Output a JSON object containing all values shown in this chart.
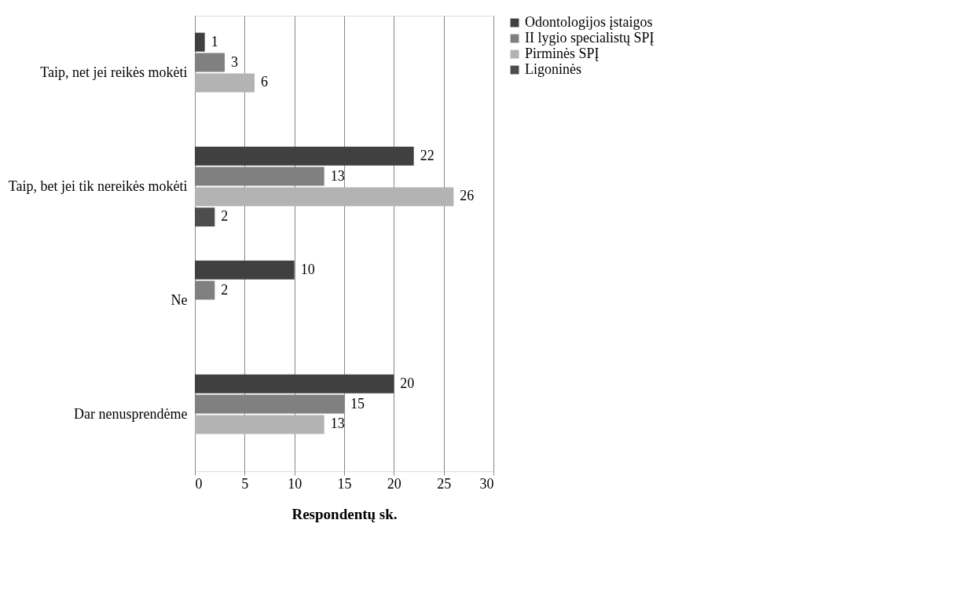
{
  "chart_data": {
    "type": "bar",
    "orientation": "horizontal",
    "xlabel": "Respondentų sk.",
    "categories": [
      "Taip, net jei reikės mokėti",
      "Taip, bet jei tik nereikės mokėti",
      "Ne",
      "Dar nenusprendėme"
    ],
    "series": [
      {
        "name": "Odontologijos įstaigos",
        "color": "#404040",
        "values": [
          1,
          22,
          10,
          20
        ]
      },
      {
        "name": "II lygio specialistų SPĮ",
        "color": "#808080",
        "values": [
          3,
          13,
          2,
          15
        ]
      },
      {
        "name": "Pirminės SPĮ",
        "color": "#b3b3b3",
        "values": [
          6,
          26,
          null,
          13
        ]
      },
      {
        "name": "Ligoninės",
        "color": "#4d4d4d",
        "values": [
          null,
          2,
          null,
          null
        ]
      }
    ],
    "xlim": [
      0,
      30
    ],
    "xticks": [
      0,
      5,
      10,
      15,
      20,
      25,
      30
    ],
    "grid": "x",
    "legend": "right",
    "data_labels": true
  }
}
